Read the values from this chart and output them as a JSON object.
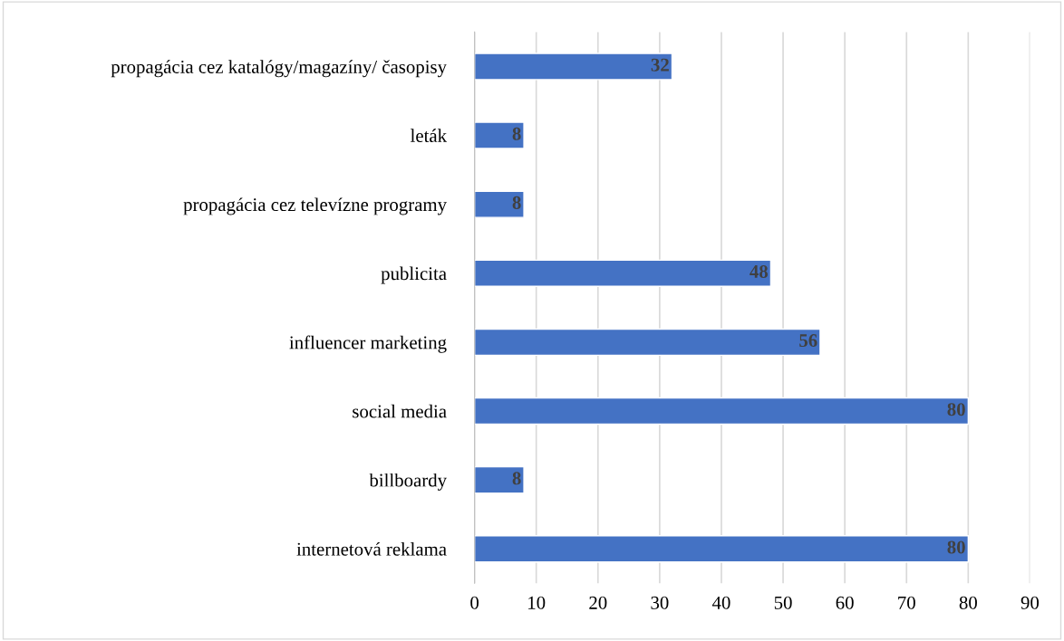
{
  "chart_data": {
    "type": "bar",
    "orientation": "horizontal",
    "categories": [
      "propagácia cez katalógy/magazíny/ časopisy",
      "leták",
      "propagácia cez televízne programy",
      "publicita",
      "influencer marketing",
      "social media",
      "billboardy",
      "internetová reklama"
    ],
    "values": [
      32,
      8,
      8,
      48,
      56,
      80,
      8,
      80
    ],
    "color": "#4472c4",
    "xlim": [
      0,
      90
    ],
    "xticks": [
      0,
      10,
      20,
      30,
      40,
      50,
      60,
      70,
      80,
      90
    ],
    "grid": "x",
    "legend": false,
    "data_labels": true
  }
}
